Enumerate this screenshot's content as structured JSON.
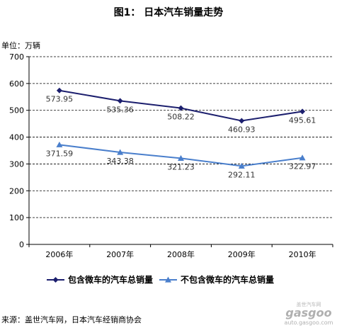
{
  "title": "图1：  日本汽车销量走势",
  "unit_label": "单位：万辆",
  "source": "来源：盖世汽车网，日本汽车经销商协会",
  "watermark": {
    "line1": "盖世汽车网",
    "line2": "gasgoo",
    "line3": "auto.gasgoo.com"
  },
  "colors": {
    "series1": "#1c1f6e",
    "series2": "#4a7fcc",
    "grid": "#000000"
  },
  "chart_data": {
    "type": "line",
    "title": "图1：  日本汽车销量走势",
    "ylabel": "单位：万辆",
    "xlabel": "",
    "categories": [
      "2006年",
      "2007年",
      "2008年",
      "2009年",
      "2010年"
    ],
    "ylim": [
      0,
      700
    ],
    "yticks": [
      "0",
      "100",
      "200",
      "300",
      "400",
      "500",
      "600",
      "700"
    ],
    "grid": "horizontal dashed",
    "legend": "bottom",
    "series": [
      {
        "name": "包含微车的汽车总销量",
        "marker": "diamond",
        "values": [
          573.95,
          535.36,
          508.22,
          460.93,
          495.61
        ],
        "labels": [
          "573.95",
          "535.36",
          "508.22",
          "460.93",
          "495.61"
        ]
      },
      {
        "name": "不包含微车的汽车总销量",
        "marker": "triangle",
        "values": [
          371.59,
          343.38,
          321.23,
          292.11,
          322.97
        ],
        "labels": [
          "371.59",
          "343.38",
          "321.23",
          "292.11",
          "322.97"
        ]
      }
    ]
  }
}
